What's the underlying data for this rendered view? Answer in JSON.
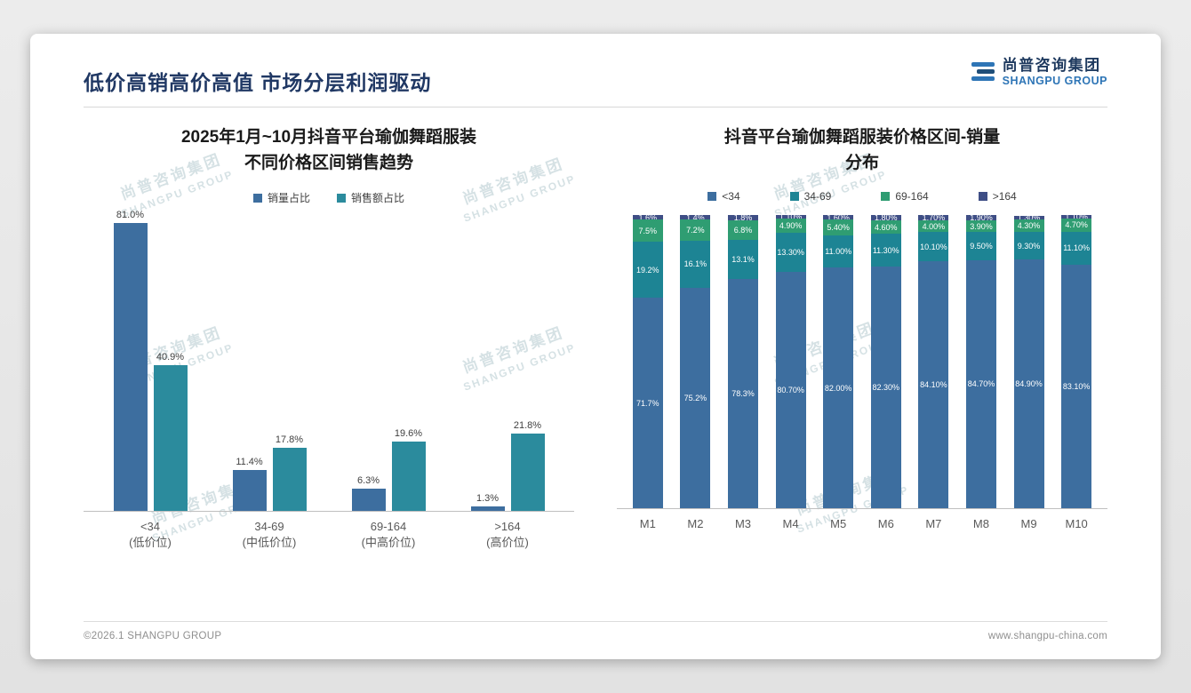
{
  "slide": {
    "title": "低价高销高价高值 市场分层利润驱动",
    "logo": {
      "cn": "尚普咨询集团",
      "en": "SHANGPU GROUP"
    },
    "watermark": {
      "cn": "尚普咨询集团",
      "en": "SHANGPU GROUP"
    },
    "footer": {
      "left": "©2026.1 SHANGPU GROUP",
      "right": "www.shangpu-china.com"
    }
  },
  "colors": {
    "title_navy": "#203864",
    "blue": "#3d6e9f",
    "teal": "#2b8b9d",
    "teal_dark": "#1d8494",
    "green": "#2f9d72",
    "navy": "#3e4e85"
  },
  "chart_data": [
    {
      "type": "bar",
      "stacked": false,
      "title": "2025年1月~10月抖音平台瑜伽舞蹈服装不同价格区间销售趋势",
      "title_lines": [
        "2025年1月~10月抖音平台瑜伽舞蹈服装",
        "不同价格区间销售趋势"
      ],
      "categories": [
        "<34",
        "34-69",
        "69-164",
        ">164"
      ],
      "category_sublabels": [
        "(低价位)",
        "(中低价位)",
        "(中高价位)",
        "(高价位)"
      ],
      "series": [
        {
          "name": "销量占比",
          "color": "#3d6e9f",
          "values": [
            81.0,
            11.4,
            6.3,
            1.3
          ],
          "labels": [
            "81.0%",
            "11.4%",
            "6.3%",
            "1.3%"
          ]
        },
        {
          "name": "销售额占比",
          "color": "#2b8b9d",
          "values": [
            40.9,
            17.8,
            19.6,
            21.8
          ],
          "labels": [
            "40.9%",
            "17.8%",
            "19.6%",
            "21.8%"
          ]
        }
      ],
      "ylim": [
        0,
        82
      ],
      "grid": false,
      "legend_position": "top"
    },
    {
      "type": "bar",
      "stacked": true,
      "title": "抖音平台瑜伽舞蹈服装价格区间-销量分布",
      "title_lines": [
        "抖音平台瑜伽舞蹈服装价格区间-销量",
        "分布"
      ],
      "categories": [
        "M1",
        "M2",
        "M3",
        "M4",
        "M5",
        "M6",
        "M7",
        "M8",
        "M9",
        "M10"
      ],
      "series": [
        {
          "name": "<34",
          "color": "#3d6e9f",
          "values": [
            71.7,
            75.2,
            78.3,
            80.7,
            82.0,
            82.3,
            84.1,
            84.7,
            84.9,
            83.1
          ],
          "labels": [
            "71.7%",
            "75.2%",
            "78.3%",
            "80.70%",
            "82.00%",
            "82.30%",
            "84.10%",
            "84.70%",
            "84.90%",
            "83.10%"
          ]
        },
        {
          "name": "34-69",
          "color": "#1d8494",
          "values": [
            19.2,
            16.1,
            13.1,
            13.3,
            11.0,
            11.3,
            10.1,
            9.5,
            9.3,
            11.1
          ],
          "labels": [
            "19.2%",
            "16.1%",
            "13.1%",
            "13.30%",
            "11.00%",
            "11.30%",
            "10.10%",
            "9.50%",
            "9.30%",
            "11.10%"
          ]
        },
        {
          "name": "69-164",
          "color": "#2f9d72",
          "values": [
            7.5,
            7.2,
            6.8,
            4.9,
            5.4,
            4.6,
            4.0,
            3.9,
            4.3,
            4.7
          ],
          "labels": [
            "7.5%",
            "7.2%",
            "6.8%",
            "4.90%",
            "5.40%",
            "4.60%",
            "4.00%",
            "3.90%",
            "4.30%",
            "4.70%"
          ]
        },
        {
          "name": ">164",
          "color": "#3e4e85",
          "values": [
            1.6,
            1.4,
            1.8,
            1.1,
            1.6,
            1.8,
            1.7,
            1.9,
            1.3,
            1.1
          ],
          "labels": [
            "1.6%",
            "1.4%",
            "1.8%",
            "1.10%",
            "1.60%",
            "1.80%",
            "1.70%",
            "1.90%",
            "1.30%",
            "1.10%"
          ]
        }
      ],
      "ylim": [
        0,
        100
      ],
      "grid": false,
      "legend_position": "top"
    }
  ]
}
